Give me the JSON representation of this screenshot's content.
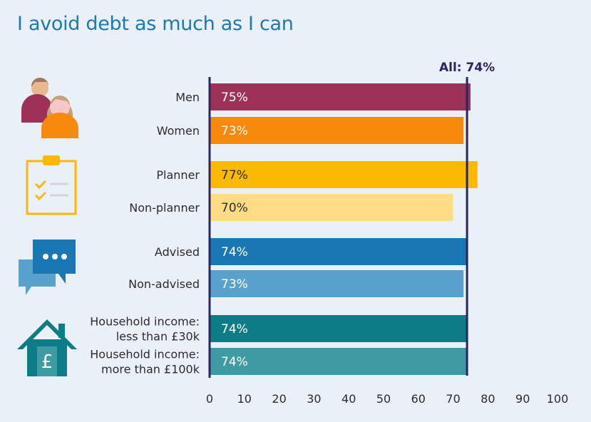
{
  "chart_data": {
    "type": "bar",
    "orientation": "horizontal",
    "title": "I avoid debt as much as I can",
    "categories": [
      "Men",
      "Women",
      "Planner",
      "Non-planner",
      "Advised",
      "Non-advised",
      "Household income: less than £30k",
      "Household income: more than £100k"
    ],
    "category_lines": [
      [
        "Men"
      ],
      [
        "Women"
      ],
      [
        "Planner"
      ],
      [
        "Non-planner"
      ],
      [
        "Advised"
      ],
      [
        "Non-advised"
      ],
      [
        "Household income:",
        "less than £30k"
      ],
      [
        "Household income:",
        "more than £100k"
      ]
    ],
    "values": [
      75,
      73,
      77,
      70,
      74,
      73,
      74,
      74
    ],
    "value_labels": [
      "75%",
      "73%",
      "77%",
      "70%",
      "74%",
      "73%",
      "74%",
      "74%"
    ],
    "bar_colors": [
      "#9e3157",
      "#f7890c",
      "#fbb900",
      "#ffdc83",
      "#1a77b4",
      "#58a1cc",
      "#0d7c87",
      "#3f9aa3"
    ],
    "label_colors": [
      "#ffffff",
      "#ffffff",
      "#2b2b2b",
      "#2b2b2b",
      "#ffffff",
      "#ffffff",
      "#ffffff",
      "#ffffff"
    ],
    "xlim": [
      0,
      100
    ],
    "x_ticks": [
      0,
      10,
      20,
      30,
      40,
      50,
      60,
      70,
      80,
      90,
      100
    ],
    "reference_line": {
      "value": 74,
      "label": "All: 74%",
      "color": "#2a2560"
    },
    "grid": false
  },
  "icons": [
    "people-icon",
    "clipboard-checklist-icon",
    "chat-bubbles-icon",
    "house-pound-icon"
  ]
}
